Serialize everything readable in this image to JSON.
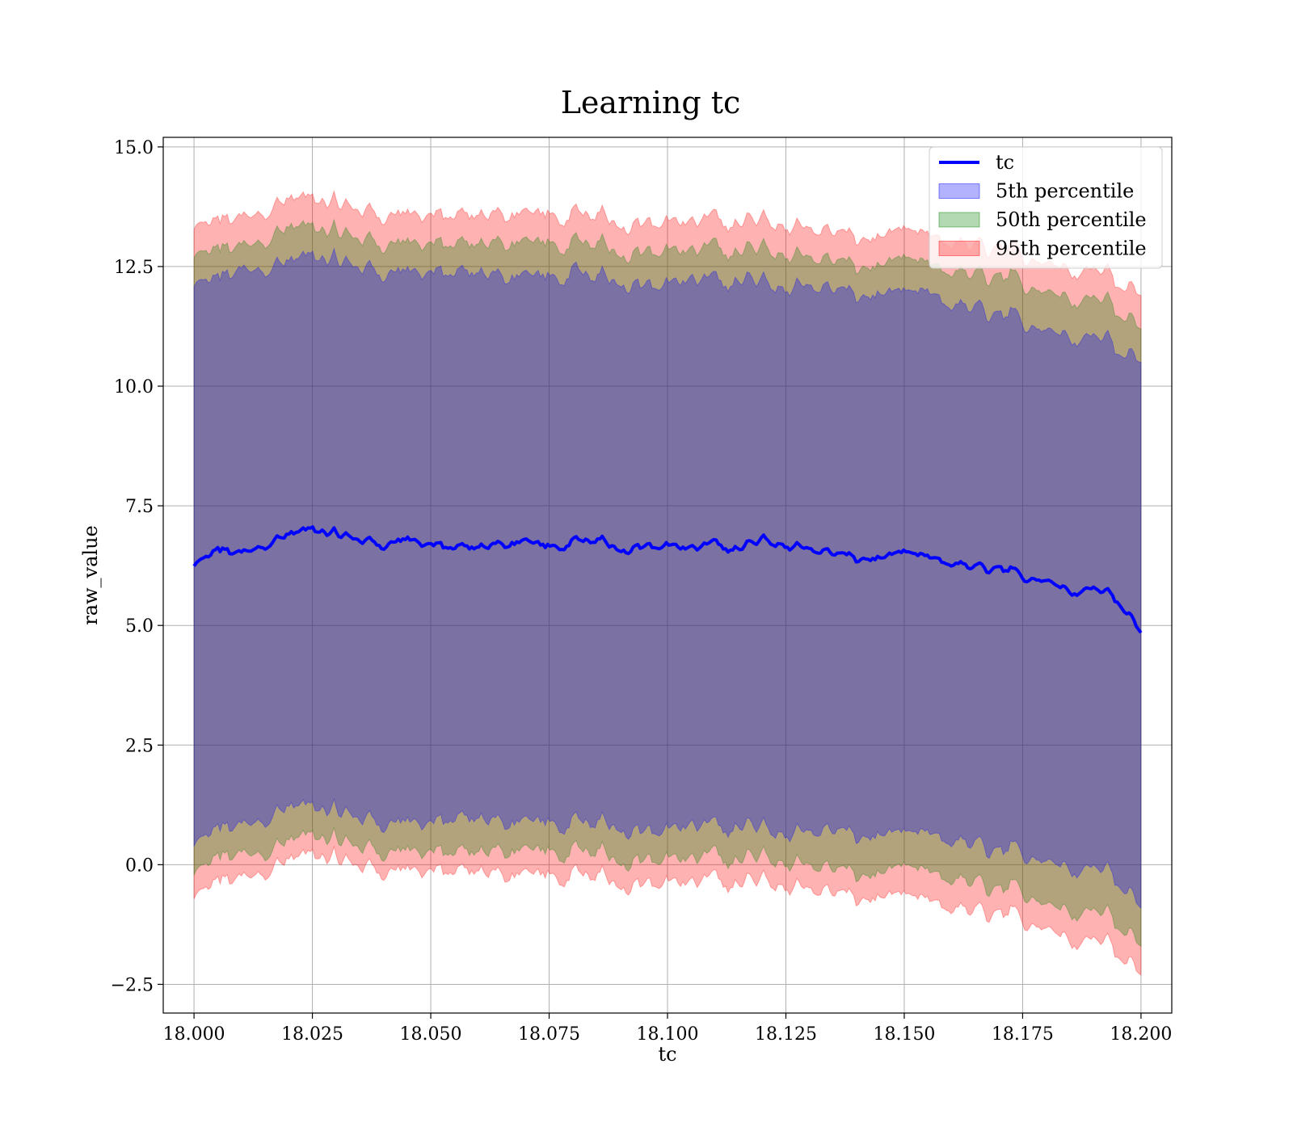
{
  "chart_data": {
    "type": "line",
    "title": "Learning tc",
    "xlabel": "tc",
    "ylabel": "raw_value",
    "xlim": [
      17.9935,
      18.2065
    ],
    "ylim": [
      -3.1,
      15.2
    ],
    "xticks": [
      18.0,
      18.025,
      18.05,
      18.075,
      18.1,
      18.125,
      18.15,
      18.175,
      18.2
    ],
    "xtick_labels": [
      "18.000",
      "18.025",
      "18.050",
      "18.075",
      "18.100",
      "18.125",
      "18.150",
      "18.175",
      "18.200"
    ],
    "yticks": [
      -2.5,
      0.0,
      2.5,
      5.0,
      7.5,
      10.0,
      12.5,
      15.0
    ],
    "ytick_labels": [
      "−2.5",
      "0.0",
      "2.5",
      "5.0",
      "7.5",
      "10.0",
      "12.5",
      "15.0"
    ],
    "grid": true,
    "legend_position": "top-right",
    "x": [
      18.0,
      18.005,
      18.01,
      18.015,
      18.02,
      18.025,
      18.03,
      18.035,
      18.04,
      18.045,
      18.05,
      18.055,
      18.06,
      18.065,
      18.07,
      18.075,
      18.08,
      18.085,
      18.09,
      18.095,
      18.1,
      18.105,
      18.11,
      18.115,
      18.12,
      18.125,
      18.13,
      18.135,
      18.14,
      18.145,
      18.15,
      18.155,
      18.16,
      18.165,
      18.17,
      18.175,
      18.18,
      18.185,
      18.19,
      18.195,
      18.2
    ],
    "series": [
      {
        "name": "tc",
        "kind": "line",
        "color": "#0000ff",
        "values": [
          6.2,
          6.6,
          6.5,
          6.7,
          6.9,
          7.0,
          6.9,
          6.8,
          6.7,
          6.8,
          6.7,
          6.6,
          6.6,
          6.7,
          6.8,
          6.6,
          6.7,
          6.8,
          6.6,
          6.7,
          6.7,
          6.6,
          6.7,
          6.6,
          6.8,
          6.7,
          6.6,
          6.5,
          6.4,
          6.4,
          6.5,
          6.4,
          6.3,
          6.2,
          6.2,
          6.0,
          6.0,
          5.7,
          5.8,
          5.6,
          4.9
        ]
      },
      {
        "name": "5th percentile",
        "kind": "band",
        "color": "#0000ff",
        "opacity": 0.3,
        "lower": [
          0.3,
          0.8,
          0.8,
          1.0,
          1.2,
          1.2,
          1.1,
          1.0,
          0.9,
          0.9,
          0.9,
          0.9,
          0.9,
          0.9,
          1.0,
          0.8,
          0.8,
          0.9,
          0.8,
          0.8,
          0.8,
          0.8,
          0.8,
          0.8,
          0.8,
          0.7,
          0.7,
          0.7,
          0.6,
          0.6,
          0.6,
          0.6,
          0.5,
          0.4,
          0.3,
          0.2,
          0.2,
          -0.1,
          0.0,
          -0.2,
          -0.8
        ],
        "upper": [
          12.0,
          12.3,
          12.4,
          12.5,
          12.6,
          12.7,
          12.6,
          12.5,
          12.4,
          12.4,
          12.4,
          12.3,
          12.3,
          12.3,
          12.4,
          12.2,
          12.3,
          12.3,
          12.2,
          12.2,
          12.2,
          12.2,
          12.2,
          12.2,
          12.2,
          12.1,
          12.1,
          12.0,
          11.9,
          11.9,
          11.9,
          11.9,
          11.7,
          11.6,
          11.5,
          11.3,
          11.3,
          11.0,
          11.1,
          10.9,
          10.6
        ]
      },
      {
        "name": "50th percentile",
        "kind": "band",
        "color": "#008000",
        "opacity": 0.3,
        "lower": [
          -0.3,
          0.2,
          0.2,
          0.3,
          0.5,
          0.6,
          0.5,
          0.4,
          0.3,
          0.3,
          0.3,
          0.2,
          0.2,
          0.3,
          0.4,
          0.2,
          0.2,
          0.3,
          0.1,
          0.2,
          0.2,
          0.1,
          0.2,
          0.1,
          0.2,
          0.1,
          0.0,
          -0.1,
          -0.2,
          -0.2,
          -0.1,
          -0.2,
          -0.3,
          -0.4,
          -0.5,
          -0.6,
          -0.7,
          -1.0,
          -0.9,
          -1.1,
          -1.6
        ],
        "upper": [
          12.6,
          12.9,
          12.9,
          13.1,
          13.3,
          13.3,
          13.2,
          13.1,
          13.0,
          13.0,
          13.0,
          12.9,
          12.9,
          13.0,
          13.1,
          12.9,
          12.9,
          13.0,
          12.8,
          12.9,
          12.9,
          12.8,
          12.9,
          12.8,
          12.9,
          12.8,
          12.7,
          12.6,
          12.5,
          12.5,
          12.6,
          12.5,
          12.4,
          12.3,
          12.3,
          12.1,
          12.1,
          11.8,
          11.9,
          11.7,
          11.3
        ]
      },
      {
        "name": "95th percentile",
        "kind": "band",
        "color": "#ff0000",
        "opacity": 0.3,
        "lower": [
          -0.8,
          -0.3,
          -0.3,
          -0.1,
          0.1,
          0.2,
          0.1,
          0.0,
          -0.1,
          -0.1,
          -0.1,
          -0.2,
          -0.2,
          -0.2,
          -0.1,
          -0.3,
          -0.3,
          -0.2,
          -0.4,
          -0.3,
          -0.3,
          -0.4,
          -0.3,
          -0.4,
          -0.3,
          -0.4,
          -0.5,
          -0.6,
          -0.7,
          -0.7,
          -0.7,
          -0.8,
          -0.9,
          -1.0,
          -1.0,
          -1.2,
          -1.2,
          -1.6,
          -1.5,
          -1.7,
          -2.2
        ],
        "upper": [
          13.2,
          13.5,
          13.5,
          13.7,
          13.9,
          13.9,
          13.8,
          13.7,
          13.6,
          13.6,
          13.6,
          13.5,
          13.5,
          13.6,
          13.7,
          13.5,
          13.5,
          13.6,
          13.4,
          13.5,
          13.5,
          13.4,
          13.5,
          13.4,
          13.5,
          13.4,
          13.3,
          13.2,
          13.1,
          13.1,
          13.2,
          13.1,
          13.0,
          12.9,
          12.9,
          12.7,
          12.7,
          12.4,
          12.5,
          12.3,
          12.0
        ]
      }
    ]
  }
}
